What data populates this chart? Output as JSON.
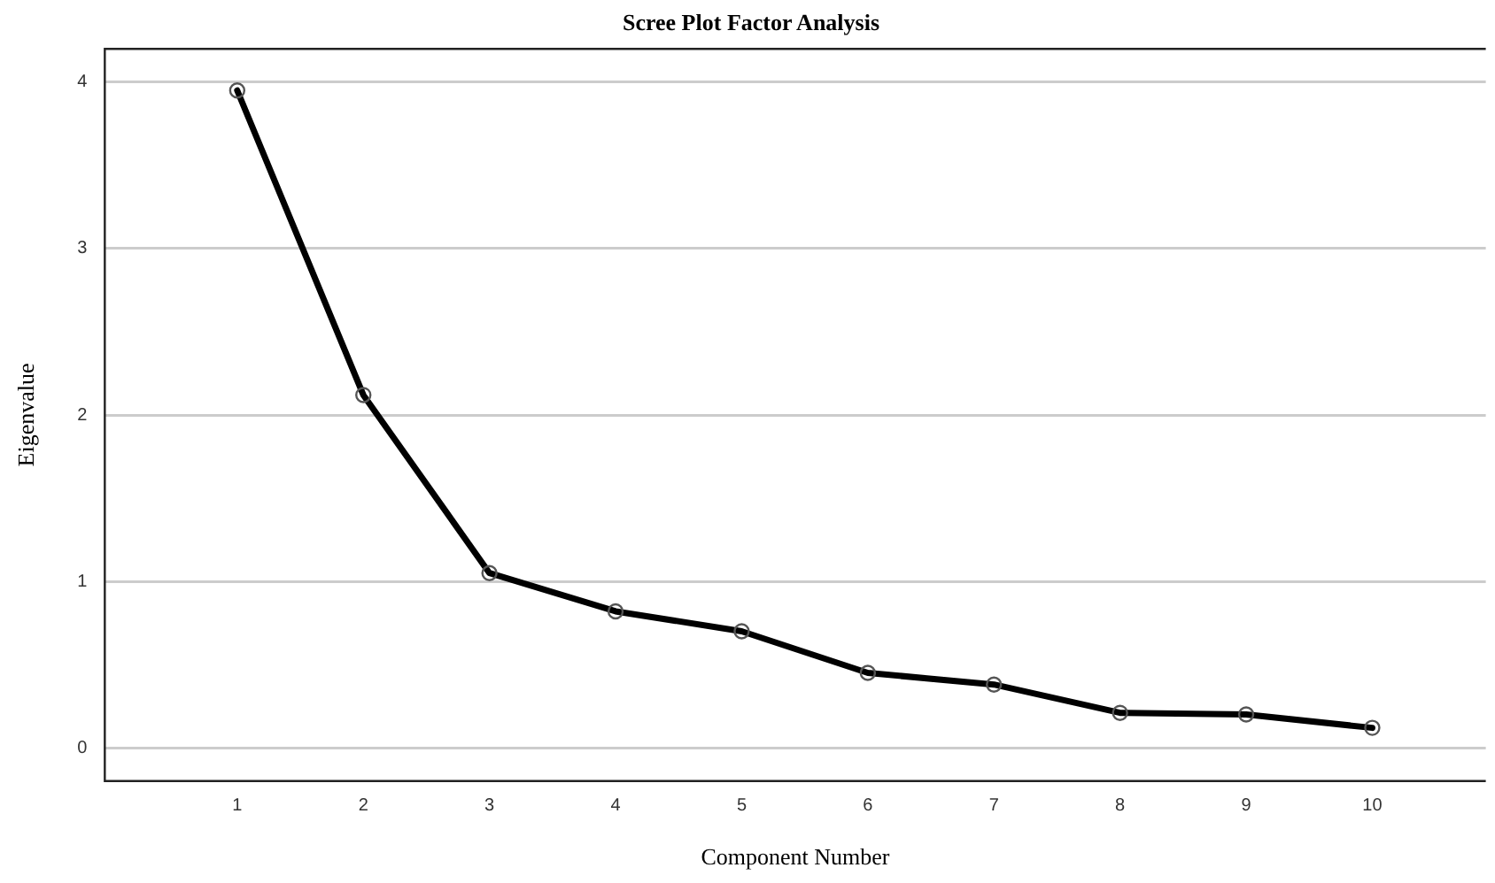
{
  "chart_data": {
    "type": "line",
    "title": "Scree Plot Factor Analysis",
    "xlabel": "Component Number",
    "ylabel": "Eigenvalue",
    "x": [
      1,
      2,
      3,
      4,
      5,
      6,
      7,
      8,
      9,
      10
    ],
    "series": [
      {
        "color": "#000000",
        "values": [
          3.95,
          2.12,
          1.05,
          0.82,
          0.7,
          0.45,
          0.38,
          0.21,
          0.2,
          0.12
        ]
      }
    ],
    "xlim": [
      -0.05,
      10.9
    ],
    "xticks": [
      1,
      2,
      3,
      4,
      5,
      6,
      7,
      8,
      9,
      10
    ],
    "ylim": [
      -0.2,
      4.2
    ],
    "yticks": [
      0,
      1,
      2,
      3,
      4
    ],
    "grid": "y",
    "legend": false,
    "marker": "circle",
    "line_style": "solid"
  }
}
